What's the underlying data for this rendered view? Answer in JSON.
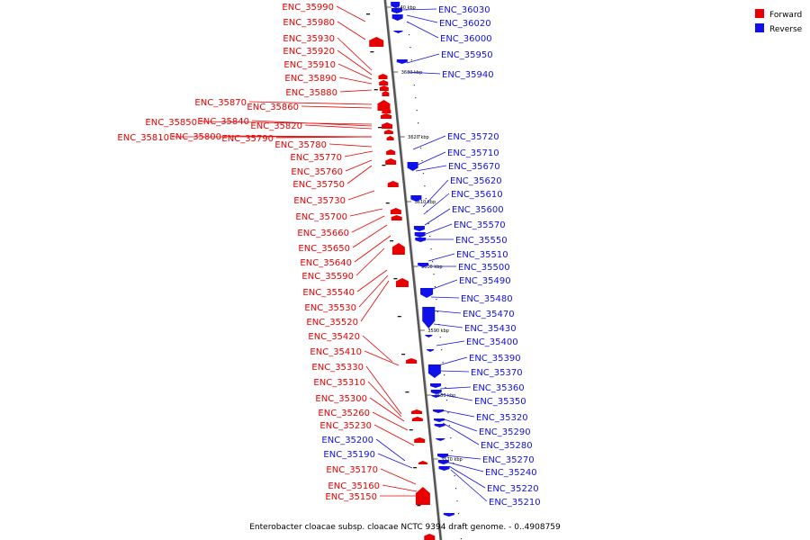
{
  "caption": "Enterobacter cloacae subsp. cloacae NCTC 9394 draft genome. - 0..4908759",
  "legend": {
    "forward_label": "Forward",
    "reverse_label": "Reverse",
    "forward_color": "#e80000",
    "reverse_color": "#1010e8"
  },
  "scale_ticks": [
    "3640 kbp",
    "3630 kbp",
    "3620 kbp",
    "3610 kbp",
    "3600 kbp",
    "3590 kbp",
    "3580 kbp",
    "3570 kbp"
  ],
  "left_labels": [
    "ENC_35990",
    "ENC_35980",
    "ENC_35930",
    "ENC_35920",
    "ENC_35910",
    "ENC_35890",
    "ENC_35880",
    "ENC_35870",
    "ENC_35860",
    "ENC_35850",
    "ENC_35840",
    "ENC_35820",
    "ENC_35810",
    "ENC_35800",
    "ENC_35790",
    "ENC_35780",
    "ENC_35770",
    "ENC_35760",
    "ENC_35750",
    "ENC_35730",
    "ENC_35700",
    "ENC_35660",
    "ENC_35650",
    "ENC_35640",
    "ENC_35590",
    "ENC_35540",
    "ENC_35530",
    "ENC_35520",
    "ENC_35420",
    "ENC_35410",
    "ENC_35330",
    "ENC_35310",
    "ENC_35300",
    "ENC_35260",
    "ENC_35230",
    "ENC_35200",
    "ENC_35190",
    "ENC_35170",
    "ENC_35160",
    "ENC_35150"
  ],
  "right_labels": [
    "ENC_36030",
    "ENC_36020",
    "ENC_36000",
    "ENC_35950",
    "ENC_35940",
    "ENC_35720",
    "ENC_35710",
    "ENC_35670",
    "ENC_35620",
    "ENC_35610",
    "ENC_35600",
    "ENC_35570",
    "ENC_35550",
    "ENC_35510",
    "ENC_35500",
    "ENC_35490",
    "ENC_35480",
    "ENC_35470",
    "ENC_35430",
    "ENC_35400",
    "ENC_35390",
    "ENC_35370",
    "ENC_35360",
    "ENC_35350",
    "ENC_35320",
    "ENC_35290",
    "ENC_35280",
    "ENC_35270",
    "ENC_35240",
    "ENC_35220",
    "ENC_35210"
  ]
}
